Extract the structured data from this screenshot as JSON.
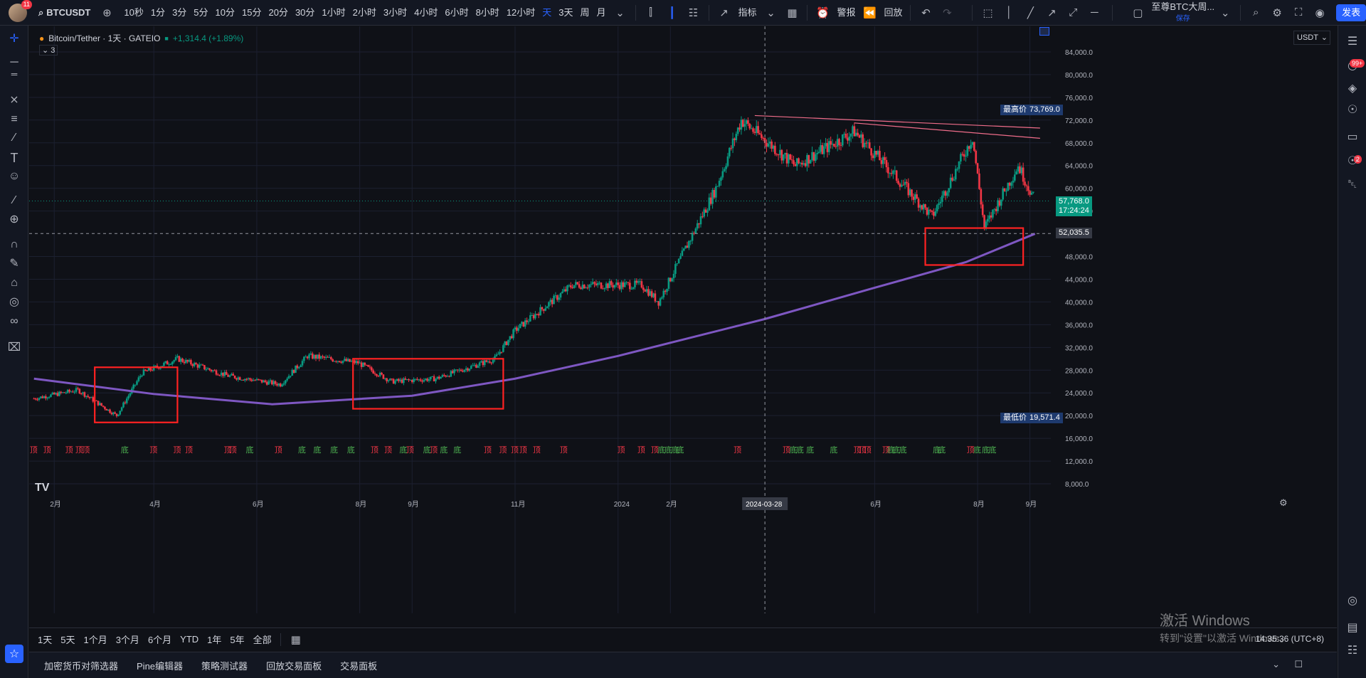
{
  "topbar": {
    "notif_count": "11",
    "symbol": "BTCUSDT",
    "intervals": [
      "10秒",
      "1分",
      "3分",
      "5分",
      "10分",
      "15分",
      "20分",
      "30分",
      "1小时",
      "2小时",
      "3小时",
      "4小时",
      "6小时",
      "8小时",
      "12小时",
      "天",
      "3天",
      "周",
      "月"
    ],
    "active_interval": "天",
    "indicators_label": "指标",
    "alert_label": "警报",
    "replay_label": "回放",
    "layout_name": "至尊BTC大周...",
    "layout_status": "保存",
    "publish_label": "发表"
  },
  "legend": {
    "title": "Bitcoin/Tether · 1天 · GATEIO",
    "change": "+1,314.4 (+1.89%)",
    "indicator_count": "3"
  },
  "price_scale": {
    "currency": "USDT",
    "ticks": [
      "84,000.0",
      "80,000.0",
      "76,000.0",
      "72,000.0",
      "68,000.0",
      "64,000.0",
      "60,000.0",
      "56,000.0",
      "48,000.0",
      "44,000.0",
      "40,000.0",
      "36,000.0",
      "32,000.0",
      "28,000.0",
      "24,000.0",
      "20,000.0",
      "16,000.0",
      "12,000.0",
      "8,000.0"
    ],
    "high_label": "最高价",
    "high_value": "73,769.0",
    "low_label": "最低价",
    "low_value": "19,571.4",
    "last_price": "57,768.0",
    "countdown": "17:24:24",
    "crosshair_price": "52,035.5"
  },
  "time_axis": {
    "labels": [
      "2月",
      "4月",
      "6月",
      "8月",
      "9月",
      "11月",
      "2024",
      "2月",
      "6月",
      "8月",
      "9月"
    ],
    "crosshair_date": "2024-03-28"
  },
  "period_bar": {
    "ranges": [
      "1天",
      "5天",
      "1个月",
      "3个月",
      "6个月",
      "YTD",
      "1年",
      "5年",
      "全部"
    ],
    "time": "14:35:36 (UTC+8)"
  },
  "bottom_tabs": [
    "加密货币对筛选器",
    "Pine编辑器",
    "策略测试器",
    "回放交易面板",
    "交易面板"
  ],
  "signals": {
    "top_label": "顶",
    "bottom_label": "底"
  },
  "watermark": {
    "line1": "激活 Windows",
    "line2": "转到\"设置\"以激活 Windows。"
  },
  "right_badges": {
    "alerts": "99+",
    "messages": "2"
  },
  "colors": {
    "up": "#089981",
    "down": "#f23645",
    "ma": "#7e57c2",
    "accent": "#2962ff",
    "box": "#ff2222"
  },
  "chart_data": {
    "type": "candlestick",
    "symbol": "Bitcoin/Tether",
    "interval": "1天",
    "exchange": "GATEIO",
    "ylim": [
      6000,
      88000
    ],
    "approx_close_path": [
      {
        "x": "2023-01-20",
        "y": 23000
      },
      {
        "x": "2023-02-15",
        "y": 24500
      },
      {
        "x": "2023-03-10",
        "y": 20000
      },
      {
        "x": "2023-03-25",
        "y": 27500
      },
      {
        "x": "2023-04-15",
        "y": 30000
      },
      {
        "x": "2023-05-15",
        "y": 27000
      },
      {
        "x": "2023-06-15",
        "y": 25500
      },
      {
        "x": "2023-07-01",
        "y": 30500
      },
      {
        "x": "2023-07-31",
        "y": 29300
      },
      {
        "x": "2023-08-20",
        "y": 26000
      },
      {
        "x": "2023-09-15",
        "y": 26500
      },
      {
        "x": "2023-10-20",
        "y": 30000
      },
      {
        "x": "2023-11-01",
        "y": 35000
      },
      {
        "x": "2023-12-05",
        "y": 43000
      },
      {
        "x": "2024-01-15",
        "y": 43000
      },
      {
        "x": "2024-01-25",
        "y": 40000
      },
      {
        "x": "2024-02-28",
        "y": 60000
      },
      {
        "x": "2024-03-14",
        "y": 72000
      },
      {
        "x": "2024-04-15",
        "y": 64000
      },
      {
        "x": "2024-05-20",
        "y": 70000
      },
      {
        "x": "2024-07-05",
        "y": 55000
      },
      {
        "x": "2024-07-29",
        "y": 69000
      },
      {
        "x": "2024-08-05",
        "y": 53000
      },
      {
        "x": "2024-08-25",
        "y": 64000
      },
      {
        "x": "2024-09-04",
        "y": 57768
      }
    ],
    "ma_path": [
      {
        "x": "2023-01-20",
        "y": 26500
      },
      {
        "x": "2023-04-01",
        "y": 23800
      },
      {
        "x": "2023-06-10",
        "y": 22000
      },
      {
        "x": "2023-09-01",
        "y": 23500
      },
      {
        "x": "2023-11-01",
        "y": 26500
      },
      {
        "x": "2024-01-01",
        "y": 30500
      },
      {
        "x": "2024-03-28",
        "y": 37000
      },
      {
        "x": "2024-06-01",
        "y": 42500
      },
      {
        "x": "2024-07-25",
        "y": 47000
      },
      {
        "x": "2024-09-04",
        "y": 52000
      }
    ]
  }
}
